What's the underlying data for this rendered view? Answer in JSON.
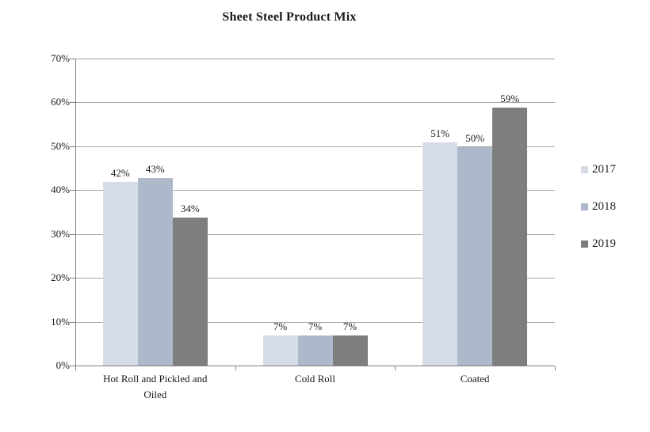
{
  "chart_data": {
    "type": "bar",
    "title": "Sheet Steel Product Mix",
    "categories": [
      "Hot Roll and Pickled and Oiled",
      "Cold Roll",
      "Coated"
    ],
    "series": [
      {
        "name": "2017",
        "color": "#d6dce6",
        "values": [
          42,
          7,
          51
        ]
      },
      {
        "name": "2018",
        "color": "#adb9cb",
        "values": [
          43,
          7,
          50
        ]
      },
      {
        "name": "2019",
        "color": "#7e7e7e",
        "values": [
          34,
          7,
          59
        ]
      }
    ],
    "value_label_suffix": "%",
    "yticks": [
      "0%",
      "10%",
      "20%",
      "30%",
      "40%",
      "50%",
      "60%",
      "70%"
    ],
    "ylim": [
      0,
      70
    ],
    "grid": true,
    "legend_position": "right",
    "colors": {
      "gridline": "#a6a6a6",
      "axis": "#808080",
      "text": "#1a1a1a",
      "background": "#ffffff"
    }
  }
}
